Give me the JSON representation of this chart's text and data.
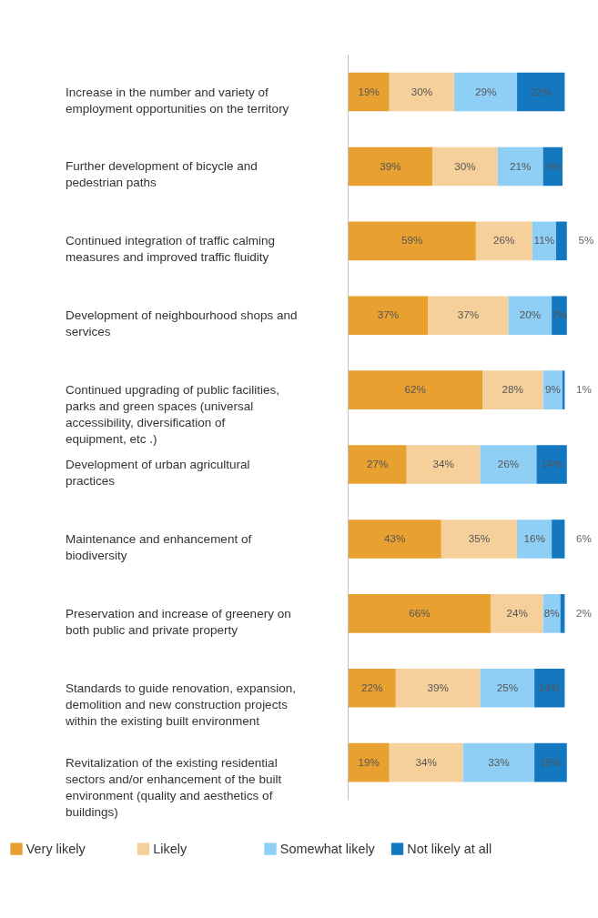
{
  "chart_data": {
    "type": "bar",
    "orientation": "horizontal",
    "stacked": true,
    "legend": "bottom",
    "tick_labels": "y",
    "categories": [
      "Increase in the number and variety of employment opportunities on the territory",
      "Further development of bicycle and pedestrian paths",
      "Continued integration of traffic calming measures and improved traffic fluidity",
      "Development of neighbourhood shops and services",
      "Continued upgrading of public facilities, parks and green spaces (universal accessibility, diversification of equipment, etc .)",
      "Development of urban agricultural practices",
      "Maintenance and enhancement of biodiversity",
      "Preservation and increase of greenery on both public and private property",
      "Standards to guide renovation, expansion, demolition and new construction projects within the existing built environment",
      "Revitalization of the existing residential sectors and/or enhancement of the built environment (quality and aesthetics of buildings)"
    ],
    "series": [
      {
        "name": "Very likely",
        "color": "#e8a131",
        "values": [
          19,
          39,
          59,
          37,
          62,
          27,
          43,
          66,
          22,
          19
        ],
        "value_labels": [
          "19%",
          "39%",
          "59%",
          "37%",
          "62%",
          "27%",
          "43%",
          "66%",
          "22%",
          "19%"
        ]
      },
      {
        "name": "Likely",
        "color": "#f5d09a",
        "values": [
          30,
          30,
          26,
          37,
          28,
          34,
          35,
          24,
          39,
          34
        ],
        "value_labels": [
          "30%",
          "30%",
          "26%",
          "37%",
          "28%",
          "34%",
          "35%",
          "24%",
          "39%",
          "34%"
        ]
      },
      {
        "name": "Somewhat likely",
        "color": "#8fcff5",
        "values": [
          29,
          21,
          11,
          20,
          9,
          26,
          16,
          8,
          25,
          33
        ],
        "value_labels": [
          "29%",
          "21%",
          "11%",
          "20%",
          "9%",
          "26%",
          "16%",
          "8%",
          "25%",
          "33%"
        ]
      },
      {
        "name": "Not likely at all",
        "color": "#1478c0",
        "values": [
          22,
          9,
          5,
          7,
          1,
          14,
          6,
          2,
          14,
          15
        ],
        "value_labels": [
          "22%",
          "9%",
          "5%",
          "7%",
          "1%",
          "14%",
          "6%",
          "2%",
          "14%",
          "15%"
        ]
      }
    ]
  }
}
